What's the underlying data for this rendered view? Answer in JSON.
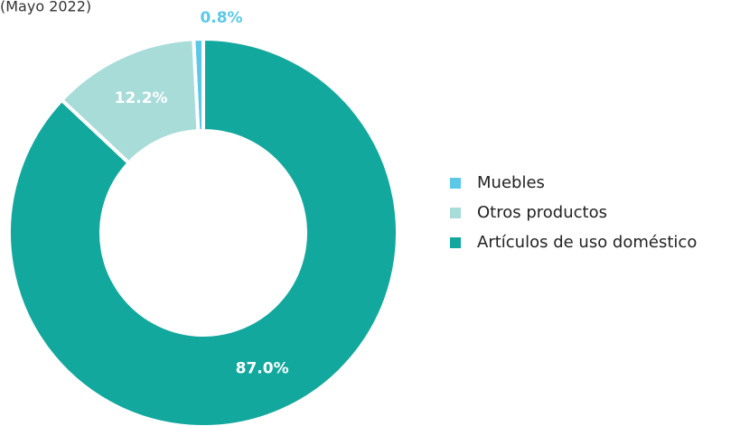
{
  "chart_data": {
    "type": "donut",
    "title": "(Mayo 2022)",
    "categories": [
      "Muebles",
      "Otros productos",
      "Artículos de uso doméstico"
    ],
    "values": [
      0.8,
      12.2,
      87.0
    ],
    "value_labels": [
      "0.8%",
      "12.2%",
      "87.0%"
    ],
    "colors": [
      "#5bc8e8",
      "#a8dcd9",
      "#12a89d"
    ],
    "legend": "right"
  }
}
